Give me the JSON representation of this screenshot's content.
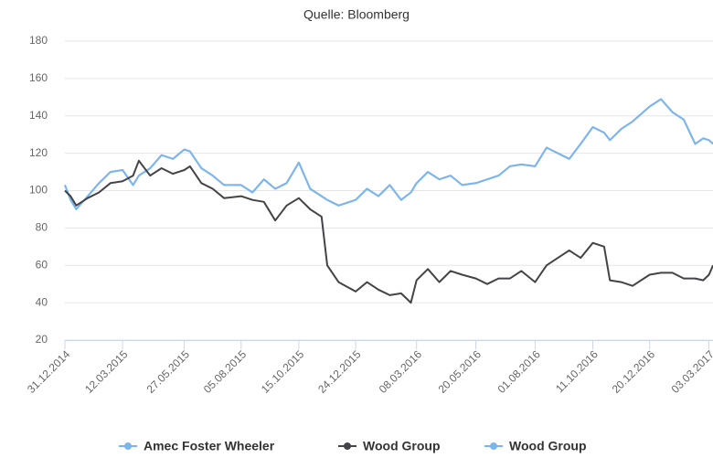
{
  "chart_data": {
    "type": "line",
    "title": "Quelle: Bloomberg",
    "x": [
      "31.12.2014",
      "07.01.2015",
      "14.01.2015",
      "28.01.2015",
      "11.02.2015",
      "25.02.2015",
      "12.03.2015",
      "25.03.2015",
      "01.04.2015",
      "15.04.2015",
      "29.04.2015",
      "13.05.2015",
      "27.05.2015",
      "03.06.2015",
      "17.06.2015",
      "01.07.2015",
      "15.07.2015",
      "05.08.2015",
      "19.08.2015",
      "02.09.2015",
      "16.09.2015",
      "30.09.2015",
      "15.10.2015",
      "29.10.2015",
      "12.11.2015",
      "19.11.2015",
      "03.12.2015",
      "24.12.2015",
      "07.01.2016",
      "21.01.2016",
      "04.02.2016",
      "18.02.2016",
      "01.03.2016",
      "08.03.2016",
      "22.03.2016",
      "05.04.2016",
      "19.04.2016",
      "03.05.2016",
      "20.05.2016",
      "03.06.2016",
      "17.06.2016",
      "01.07.2016",
      "15.07.2016",
      "01.08.2016",
      "15.08.2016",
      "29.08.2016",
      "12.09.2016",
      "26.09.2016",
      "11.10.2016",
      "25.10.2016",
      "01.11.2016",
      "15.11.2016",
      "29.11.2016",
      "20.12.2016",
      "03.01.2017",
      "17.01.2017",
      "31.01.2017",
      "14.02.2017",
      "24.02.2017",
      "03.03.2017",
      "08.03.2017"
    ],
    "series": [
      {
        "name": "Amec Foster Wheeler",
        "color": "#7cb5ec",
        "values": [
          103,
          95,
          90,
          97,
          104,
          110,
          111,
          103,
          108,
          112,
          119,
          117,
          122,
          121,
          112,
          108,
          103,
          103,
          99,
          106,
          101,
          104,
          115,
          101,
          97,
          95,
          92,
          95,
          101,
          97,
          103,
          95,
          99,
          104,
          110,
          106,
          108,
          103,
          104,
          106,
          108,
          113,
          114,
          113,
          123,
          120,
          117,
          125,
          134,
          131,
          127,
          133,
          137,
          145,
          149,
          142,
          138,
          125,
          128,
          127,
          125
        ]
      },
      {
        "name": "Wood Group",
        "color": "#434348",
        "values": [
          100,
          97,
          92,
          96,
          99,
          104,
          105,
          108,
          116,
          108,
          112,
          109,
          111,
          113,
          104,
          101,
          96,
          97,
          95,
          94,
          84,
          92,
          96,
          90,
          86,
          60,
          51,
          46,
          51,
          47,
          44,
          45,
          40,
          52,
          58,
          51,
          57,
          55,
          53,
          50,
          53,
          53,
          57,
          51,
          60,
          64,
          68,
          64,
          72,
          70,
          52,
          51,
          49,
          55,
          56,
          56,
          53,
          53,
          52,
          55,
          60
        ]
      },
      {
        "name": "Wood Group",
        "color": "#7cb5ec",
        "values": [
          103,
          95,
          90,
          97,
          104,
          110,
          111,
          103,
          108,
          112,
          119,
          117,
          122,
          121,
          112,
          108,
          103,
          103,
          99,
          106,
          101,
          104,
          115,
          101,
          97,
          95,
          92,
          95,
          101,
          97,
          103,
          95,
          99,
          104,
          110,
          106,
          108,
          103,
          104,
          106,
          108,
          113,
          114,
          113,
          123,
          120,
          117,
          125,
          134,
          131,
          127,
          133,
          137,
          145,
          149,
          142,
          138,
          125,
          128,
          127,
          125
        ]
      }
    ],
    "xlim": [
      "31.12.2014",
      "08.03.2017"
    ],
    "xticks": [
      "31.12.2014",
      "12.03.2015",
      "27.05.2015",
      "05.08.2015",
      "15.10.2015",
      "24.12.2015",
      "08.03.2016",
      "20.05.2016",
      "01.08.2016",
      "11.10.2016",
      "20.12.2016",
      "03.03.2017"
    ],
    "ylim": [
      20,
      180
    ],
    "yticks": [
      20,
      40,
      60,
      80,
      100,
      120,
      140,
      160,
      180
    ],
    "grid": true
  }
}
